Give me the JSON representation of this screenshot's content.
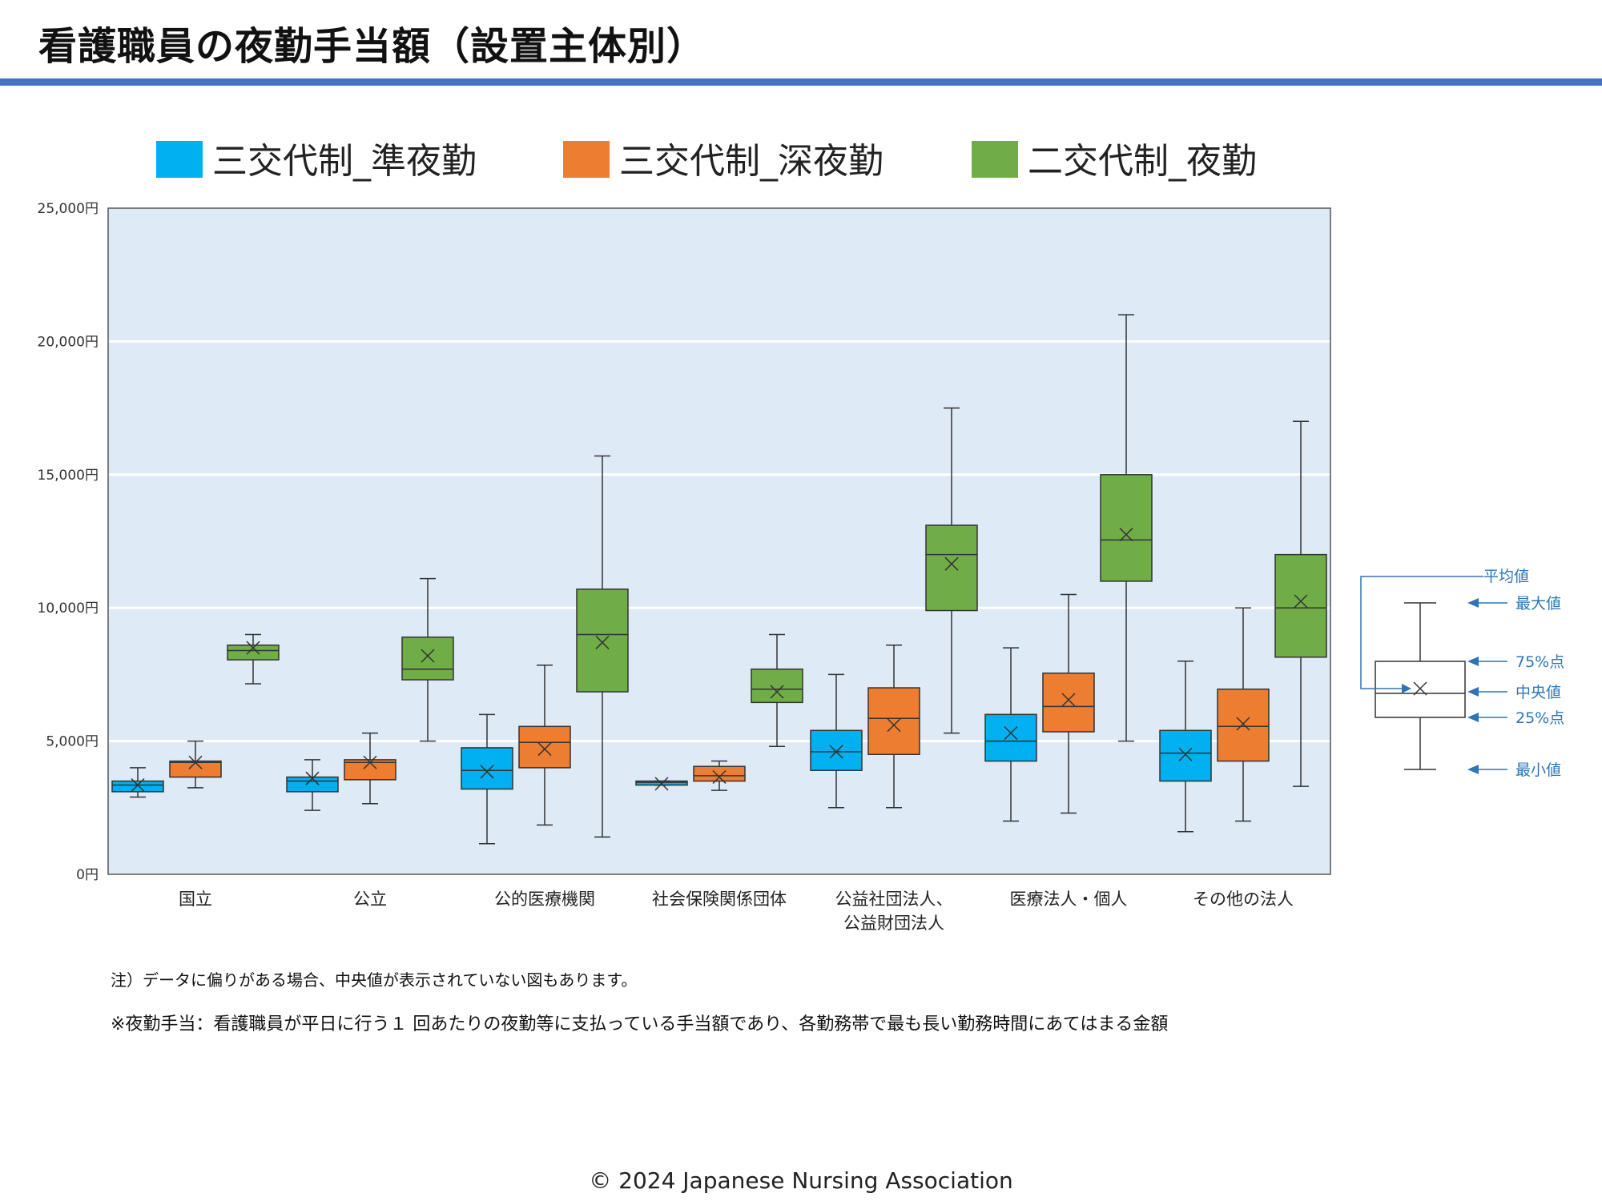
{
  "title": "看護職員の夜勤手当額（設置主体別）",
  "colors": {
    "accent_rule": "#4472c4",
    "plot_bg": "#deeaf6",
    "series": [
      "#00b0f0",
      "#ed7d31",
      "#70ad47"
    ],
    "guide": "#2e75b6"
  },
  "chart_data": {
    "type": "box",
    "yunit": "円",
    "ylim": [
      0,
      25000
    ],
    "yticks": [
      0,
      5000,
      10000,
      15000,
      20000,
      25000
    ],
    "ytick_labels": [
      "0円",
      "5,000円",
      "10,000円",
      "15,000円",
      "20,000円",
      "25,000円"
    ],
    "grid": true,
    "legend_position": "top",
    "categories": [
      "国立",
      "公立",
      "公的医療機関",
      "社会保険関係団体",
      "公益社団法人、\n公益財団法人",
      "医療法人・個人",
      "その他の法人"
    ],
    "series": [
      {
        "name": "三交代制_準夜勤",
        "boxes": [
          {
            "min": 2900,
            "q1": 3100,
            "median": 3350,
            "q3": 3500,
            "max": 4000,
            "mean": 3350
          },
          {
            "min": 2400,
            "q1": 3100,
            "median": 3500,
            "q3": 3650,
            "max": 4300,
            "mean": 3600
          },
          {
            "min": 1150,
            "q1": 3200,
            "median": 3900,
            "q3": 4750,
            "max": 6000,
            "mean": 3850
          },
          {
            "min": 3350,
            "q1": 3350,
            "median": 3450,
            "q3": 3500,
            "max": 3500,
            "mean": 3400
          },
          {
            "min": 2500,
            "q1": 3900,
            "median": 4600,
            "q3": 5400,
            "max": 7500,
            "mean": 4600
          },
          {
            "min": 2000,
            "q1": 4250,
            "median": 5000,
            "q3": 6000,
            "max": 8500,
            "mean": 5300
          },
          {
            "min": 1600,
            "q1": 3500,
            "median": 4550,
            "q3": 5400,
            "max": 8000,
            "mean": 4500
          }
        ]
      },
      {
        "name": "三交代制_深夜勤",
        "boxes": [
          {
            "min": 3250,
            "q1": 3650,
            "median": 4200,
            "q3": 4250,
            "max": 5000,
            "mean": 4200
          },
          {
            "min": 2650,
            "q1": 3550,
            "median": 4200,
            "q3": 4300,
            "max": 5300,
            "mean": 4200
          },
          {
            "min": 1850,
            "q1": 4000,
            "median": 4950,
            "q3": 5550,
            "max": 7850,
            "mean": 4700
          },
          {
            "min": 3150,
            "q1": 3500,
            "median": 3700,
            "q3": 4050,
            "max": 4250,
            "mean": 3650
          },
          {
            "min": 2500,
            "q1": 4500,
            "median": 5850,
            "q3": 7000,
            "max": 8600,
            "mean": 5600
          },
          {
            "min": 2300,
            "q1": 5350,
            "median": 6300,
            "q3": 7550,
            "max": 10500,
            "mean": 6550
          },
          {
            "min": 2000,
            "q1": 4250,
            "median": 5550,
            "q3": 6950,
            "max": 10000,
            "mean": 5650
          }
        ]
      },
      {
        "name": "二交代制_夜勤",
        "boxes": [
          {
            "min": 7150,
            "q1": 8050,
            "median": 8400,
            "q3": 8600,
            "max": 9000,
            "mean": 8500
          },
          {
            "min": 5000,
            "q1": 7300,
            "median": 7700,
            "q3": 8900,
            "max": 11100,
            "mean": 8200
          },
          {
            "min": 1400,
            "q1": 6850,
            "median": 9000,
            "q3": 10700,
            "max": 15700,
            "mean": 8700
          },
          {
            "min": 4800,
            "q1": 6450,
            "median": 6950,
            "q3": 7700,
            "max": 9000,
            "mean": 6850
          },
          {
            "min": 5300,
            "q1": 9900,
            "median": 12000,
            "q3": 13100,
            "max": 17500,
            "mean": 11650
          },
          {
            "min": 5000,
            "q1": 11000,
            "median": 12550,
            "q3": 15000,
            "max": 21000,
            "mean": 12750
          },
          {
            "min": 3300,
            "q1": 8150,
            "median": 10000,
            "q3": 12000,
            "max": 17000,
            "mean": 10250
          }
        ]
      }
    ],
    "guide_labels": {
      "mean": "平均値",
      "max": "最大値",
      "q3": "75%点",
      "median": "中央値",
      "q1": "25%点",
      "min": "最小値"
    }
  },
  "notes": {
    "note1": "注）データに偏りがある場合、中央値が表示されていない図もあります。",
    "note2": "※夜勤手当：看護職員が平日に行う１ 回あたりの夜勤等に支払っている手当額であり、各勤務帯で最も長い勤務時間にあてはまる金額"
  },
  "footer": "© 2024 Japanese Nursing Association"
}
